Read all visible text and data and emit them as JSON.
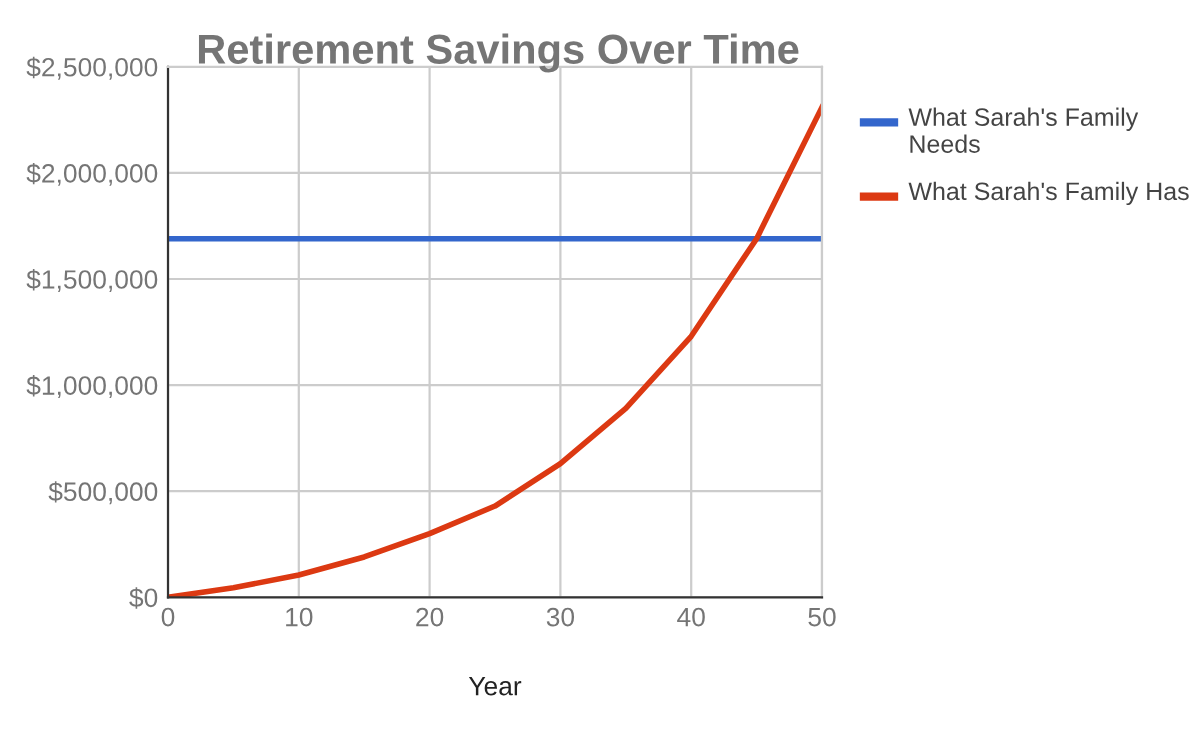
{
  "chart_data": {
    "type": "line",
    "title": "Retirement Savings Over Time",
    "xlabel": "Year",
    "series": [
      {
        "name": "What Sarah's Family Needs",
        "color": "#3366cc",
        "x": [
          0,
          50
        ],
        "values": [
          1690000,
          1690000
        ]
      },
      {
        "name": "What Sarah's Family Has",
        "color": "#dc3912",
        "x": [
          0,
          5,
          10,
          15,
          20,
          25,
          30,
          35,
          40,
          45,
          50
        ],
        "values": [
          0,
          45000,
          105000,
          190000,
          300000,
          430000,
          630000,
          890000,
          1230000,
          1690000,
          2310000
        ]
      }
    ],
    "xlim": [
      0,
      50
    ],
    "xticks": [
      0,
      10,
      20,
      30,
      40,
      50
    ],
    "ylim": [
      0,
      2500000
    ],
    "yticks": [
      {
        "value": 0,
        "label": "$0"
      },
      {
        "value": 500000,
        "label": "$500,000"
      },
      {
        "value": 1000000,
        "label": "$1,000,000"
      },
      {
        "value": 1500000,
        "label": "$1,500,000"
      },
      {
        "value": 2000000,
        "label": "$2,000,000"
      },
      {
        "value": 2500000,
        "label": "$2,500,000"
      }
    ],
    "grid": true,
    "legend": "right"
  }
}
